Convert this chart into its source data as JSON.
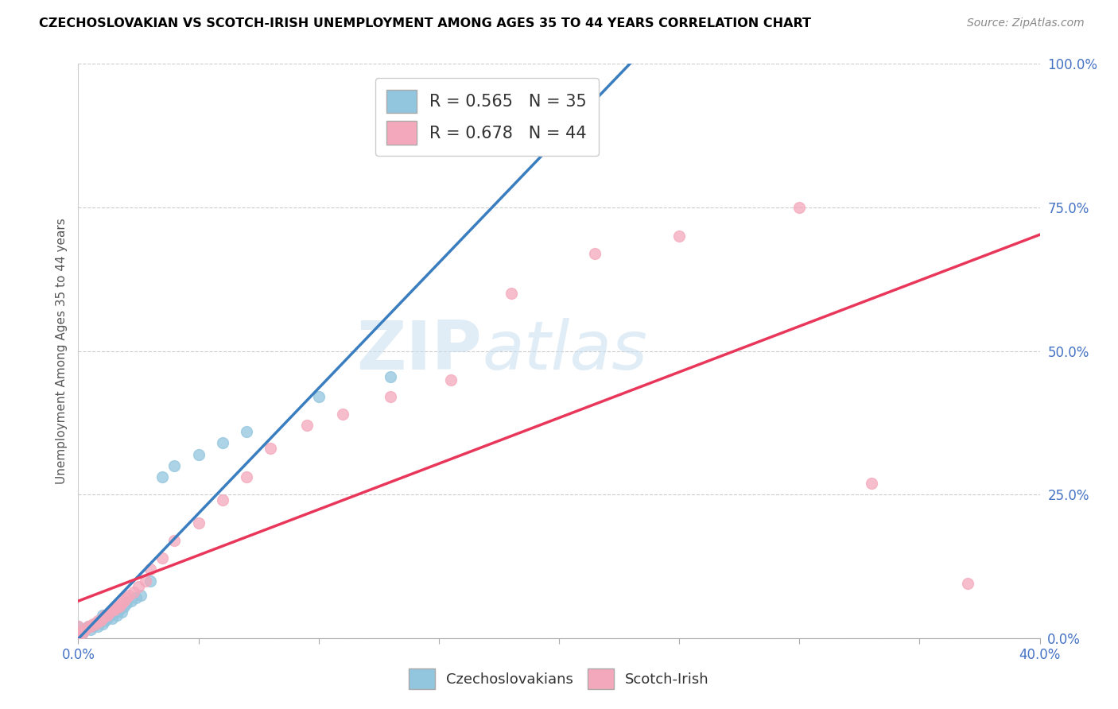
{
  "title": "CZECHOSLOVAKIAN VS SCOTCH-IRISH UNEMPLOYMENT AMONG AGES 35 TO 44 YEARS CORRELATION CHART",
  "source": "Source: ZipAtlas.com",
  "ylabel": "Unemployment Among Ages 35 to 44 years",
  "xlim": [
    0.0,
    0.4
  ],
  "ylim": [
    0.0,
    1.0
  ],
  "xticks": [
    0.0,
    0.05,
    0.1,
    0.15,
    0.2,
    0.25,
    0.3,
    0.35,
    0.4
  ],
  "yticks": [
    0.0,
    0.25,
    0.5,
    0.75,
    1.0
  ],
  "yticklabels": [
    "0.0%",
    "25.0%",
    "50.0%",
    "75.0%",
    "100.0%"
  ],
  "czech_color": "#92c5de",
  "scotch_color": "#f4a8bb",
  "czech_line_color": "#3a7ebf",
  "scotch_line_color": "#e8375a",
  "czech_r": 0.565,
  "czech_n": 35,
  "scotch_r": 0.678,
  "scotch_n": 44,
  "legend_czech_label": "R = 0.565   N = 35",
  "legend_scotch_label": "R = 0.678   N = 44",
  "watermark_zip": "ZIP",
  "watermark_atlas": "atlas",
  "czech_points_x": [
    0.0,
    0.0,
    0.0,
    0.0,
    0.002,
    0.003,
    0.004,
    0.005,
    0.006,
    0.007,
    0.008,
    0.009,
    0.01,
    0.01,
    0.011,
    0.012,
    0.013,
    0.014,
    0.015,
    0.016,
    0.017,
    0.018,
    0.019,
    0.02,
    0.022,
    0.024,
    0.026,
    0.03,
    0.035,
    0.04,
    0.05,
    0.06,
    0.07,
    0.1,
    0.13
  ],
  "czech_points_y": [
    0.0,
    0.005,
    0.01,
    0.02,
    0.01,
    0.015,
    0.02,
    0.015,
    0.02,
    0.025,
    0.02,
    0.03,
    0.025,
    0.04,
    0.03,
    0.035,
    0.04,
    0.035,
    0.045,
    0.04,
    0.05,
    0.045,
    0.055,
    0.06,
    0.065,
    0.07,
    0.075,
    0.1,
    0.28,
    0.3,
    0.32,
    0.34,
    0.36,
    0.42,
    0.455
  ],
  "scotch_points_x": [
    0.0,
    0.0,
    0.0,
    0.0,
    0.002,
    0.003,
    0.004,
    0.005,
    0.006,
    0.007,
    0.008,
    0.009,
    0.01,
    0.011,
    0.012,
    0.013,
    0.014,
    0.015,
    0.016,
    0.017,
    0.018,
    0.019,
    0.02,
    0.021,
    0.023,
    0.025,
    0.028,
    0.03,
    0.035,
    0.04,
    0.05,
    0.06,
    0.07,
    0.08,
    0.095,
    0.11,
    0.13,
    0.155,
    0.18,
    0.215,
    0.25,
    0.3,
    0.33,
    0.37
  ],
  "scotch_points_y": [
    0.0,
    0.005,
    0.01,
    0.02,
    0.01,
    0.015,
    0.02,
    0.02,
    0.025,
    0.025,
    0.03,
    0.03,
    0.035,
    0.04,
    0.04,
    0.045,
    0.05,
    0.05,
    0.055,
    0.055,
    0.06,
    0.065,
    0.07,
    0.075,
    0.08,
    0.09,
    0.1,
    0.12,
    0.14,
    0.17,
    0.2,
    0.24,
    0.28,
    0.33,
    0.37,
    0.39,
    0.42,
    0.45,
    0.6,
    0.67,
    0.7,
    0.75,
    0.27,
    0.095
  ]
}
